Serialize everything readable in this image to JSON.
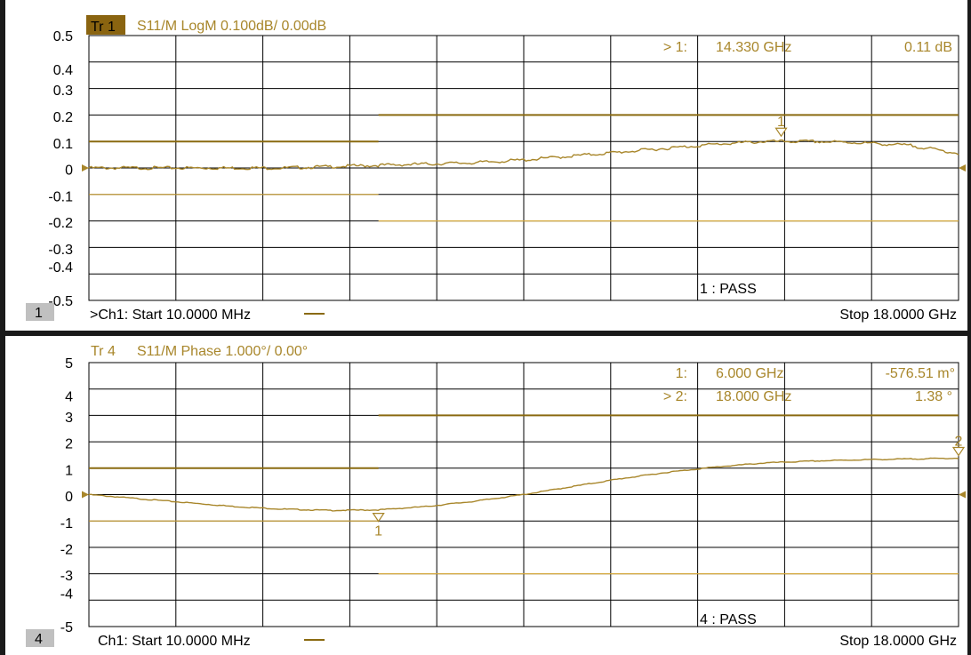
{
  "chart_data": [
    {
      "type": "line",
      "trace_badge": "Tr 1",
      "title": "S11/M LogM 0.100dB/  0.00dB",
      "channel_number": "1",
      "start_label": ">Ch1:  Start   10.0000 MHz",
      "stop_label": "Stop  18.0000 GHz",
      "x_unit": "GHz",
      "xlim": [
        0.01,
        18.0
      ],
      "ylim": [
        -0.5,
        0.5
      ],
      "ytick_labels": [
        "0.5",
        "0.4",
        "0.3",
        "0.2",
        "0.1",
        "0",
        "-0.1",
        "-0.2",
        "-0.3",
        "-0.4",
        "-0.5"
      ],
      "grid": true,
      "markers": [
        {
          "label": "1",
          "x": 14.33,
          "y": 0.11
        }
      ],
      "marker_readout": [
        {
          "prefix": "> 1:",
          "freq": "14.330  GHz",
          "value": "0.11 dB"
        }
      ],
      "limit_lines": [
        {
          "x": [
            0.01,
            6.0
          ],
          "y": 0.1
        },
        {
          "x": [
            6.0,
            18.0
          ],
          "y": 0.2
        },
        {
          "x": [
            0.01,
            6.0
          ],
          "y": -0.1
        },
        {
          "x": [
            6.0,
            18.0
          ],
          "y": -0.2
        }
      ],
      "series": [
        {
          "x": [
            0.01,
            1,
            2,
            3,
            4,
            5,
            6,
            7,
            8,
            9,
            10,
            11,
            12,
            13,
            14,
            15,
            16,
            17,
            18
          ],
          "values": [
            0.0,
            0.0,
            0.0,
            0.0,
            0.0,
            0.005,
            0.01,
            0.015,
            0.02,
            0.03,
            0.045,
            0.06,
            0.075,
            0.09,
            0.1,
            0.1,
            0.095,
            0.085,
            0.055
          ]
        }
      ],
      "status": "1 : PASS"
    },
    {
      "type": "line",
      "trace_badge": "Tr 4",
      "title": "S11/M Phase 1.000°/  0.00°",
      "channel_number": "4",
      "start_label": "Ch1:  Start   10.0000 MHz",
      "stop_label": "Stop  18.0000 GHz",
      "x_unit": "GHz",
      "xlim": [
        0.01,
        18.0
      ],
      "ylim": [
        -5,
        5
      ],
      "ytick_labels": [
        "5",
        "4",
        "3",
        "2",
        "1",
        "0",
        "-1",
        "-2",
        "-3",
        "-4",
        "-5"
      ],
      "grid": true,
      "markers": [
        {
          "label": "1",
          "x": 6.0,
          "y": -0.57651
        },
        {
          "label": "2",
          "x": 18.0,
          "y": 1.38
        }
      ],
      "marker_readout": [
        {
          "prefix": "1:",
          "freq": "6.000  GHz",
          "value": "-576.51 m°"
        },
        {
          "prefix": "> 2:",
          "freq": "18.000  GHz",
          "value": "1.38 °"
        }
      ],
      "limit_lines": [
        {
          "x": [
            0.01,
            6.0
          ],
          "y": 1
        },
        {
          "x": [
            6.0,
            18.0
          ],
          "y": 3
        },
        {
          "x": [
            0.01,
            6.0
          ],
          "y": -1
        },
        {
          "x": [
            6.0,
            18.0
          ],
          "y": -3
        }
      ],
      "series": [
        {
          "x": [
            0.01,
            1,
            2,
            3,
            4,
            5,
            6,
            7,
            8,
            9,
            10,
            11,
            12,
            13,
            14,
            15,
            16,
            17,
            18
          ],
          "values": [
            0.0,
            -0.15,
            -0.3,
            -0.45,
            -0.55,
            -0.6,
            -0.58,
            -0.45,
            -0.25,
            0.0,
            0.3,
            0.6,
            0.85,
            1.05,
            1.2,
            1.27,
            1.32,
            1.35,
            1.38
          ]
        }
      ],
      "status": "4 : PASS"
    }
  ],
  "colors": {
    "trace": "#a8862a",
    "limit": "#8a6a10",
    "badge": "#8a6410",
    "text_accent": "#a8862a",
    "text": "#000000",
    "grid": "#000000",
    "channel_box": "#c0c0c0"
  }
}
